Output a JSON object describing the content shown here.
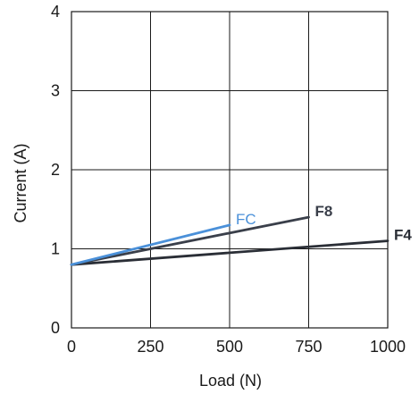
{
  "chart_data": {
    "type": "line",
    "title": "",
    "xlabel": "Load (N)",
    "ylabel": "Current (A)",
    "xlim": [
      0,
      1000
    ],
    "ylim": [
      0,
      4
    ],
    "xticks": [
      0,
      250,
      500,
      750,
      1000
    ],
    "yticks": [
      0,
      1,
      2,
      3,
      4
    ],
    "xtick_labels": [
      "0",
      "250",
      "500",
      "750",
      "1000"
    ],
    "ytick_labels": [
      "0",
      "1",
      "2",
      "3",
      "4"
    ],
    "grid": true,
    "legend": "none (series labelled at line ends)",
    "series": [
      {
        "name": "FC",
        "color": "#4a90d9",
        "label_style": "normal",
        "points": [
          [
            0,
            0.8
          ],
          [
            500,
            1.3
          ]
        ]
      },
      {
        "name": "F8",
        "color": "#3a3f4a",
        "label_style": "bold",
        "points": [
          [
            0,
            0.8
          ],
          [
            750,
            1.4
          ]
        ]
      },
      {
        "name": "F4",
        "color": "#2a2e36",
        "label_style": "bold",
        "points": [
          [
            0,
            0.8
          ],
          [
            1000,
            1.1
          ]
        ]
      }
    ]
  }
}
